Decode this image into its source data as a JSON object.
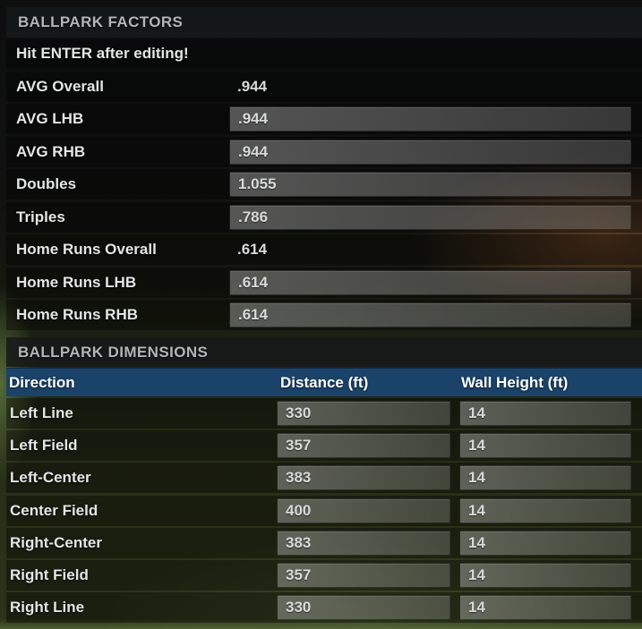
{
  "factors": {
    "title": "BALLPARK FACTORS",
    "notice": "Hit ENTER after editing!",
    "rows": [
      {
        "label": "AVG Overall",
        "value": ".944",
        "editable": false
      },
      {
        "label": "AVG LHB",
        "value": ".944",
        "editable": true
      },
      {
        "label": "AVG RHB",
        "value": ".944",
        "editable": true
      },
      {
        "label": "Doubles",
        "value": "1.055",
        "editable": true
      },
      {
        "label": "Triples",
        "value": ".786",
        "editable": true
      },
      {
        "label": "Home Runs Overall",
        "value": ".614",
        "editable": false
      },
      {
        "label": "Home Runs LHB",
        "value": ".614",
        "editable": true
      },
      {
        "label": "Home Runs RHB",
        "value": ".614",
        "editable": true
      }
    ]
  },
  "dimensions": {
    "title": "BALLPARK DIMENSIONS",
    "columns": [
      "Direction",
      "Distance (ft)",
      "Wall Height (ft)"
    ],
    "rows": [
      {
        "direction": "Left Line",
        "distance": "330",
        "wall_height": "14"
      },
      {
        "direction": "Left Field",
        "distance": "357",
        "wall_height": "14"
      },
      {
        "direction": "Left-Center",
        "distance": "383",
        "wall_height": "14"
      },
      {
        "direction": "Center Field",
        "distance": "400",
        "wall_height": "14"
      },
      {
        "direction": "Right-Center",
        "distance": "383",
        "wall_height": "14"
      },
      {
        "direction": "Right Field",
        "distance": "357",
        "wall_height": "14"
      },
      {
        "direction": "Right Line",
        "distance": "330",
        "wall_height": "14"
      }
    ]
  },
  "colors": {
    "table_header_blue": "#1b4369",
    "section_header_text": "#b2b5b7",
    "row_label_text": "#e4e5e6"
  }
}
